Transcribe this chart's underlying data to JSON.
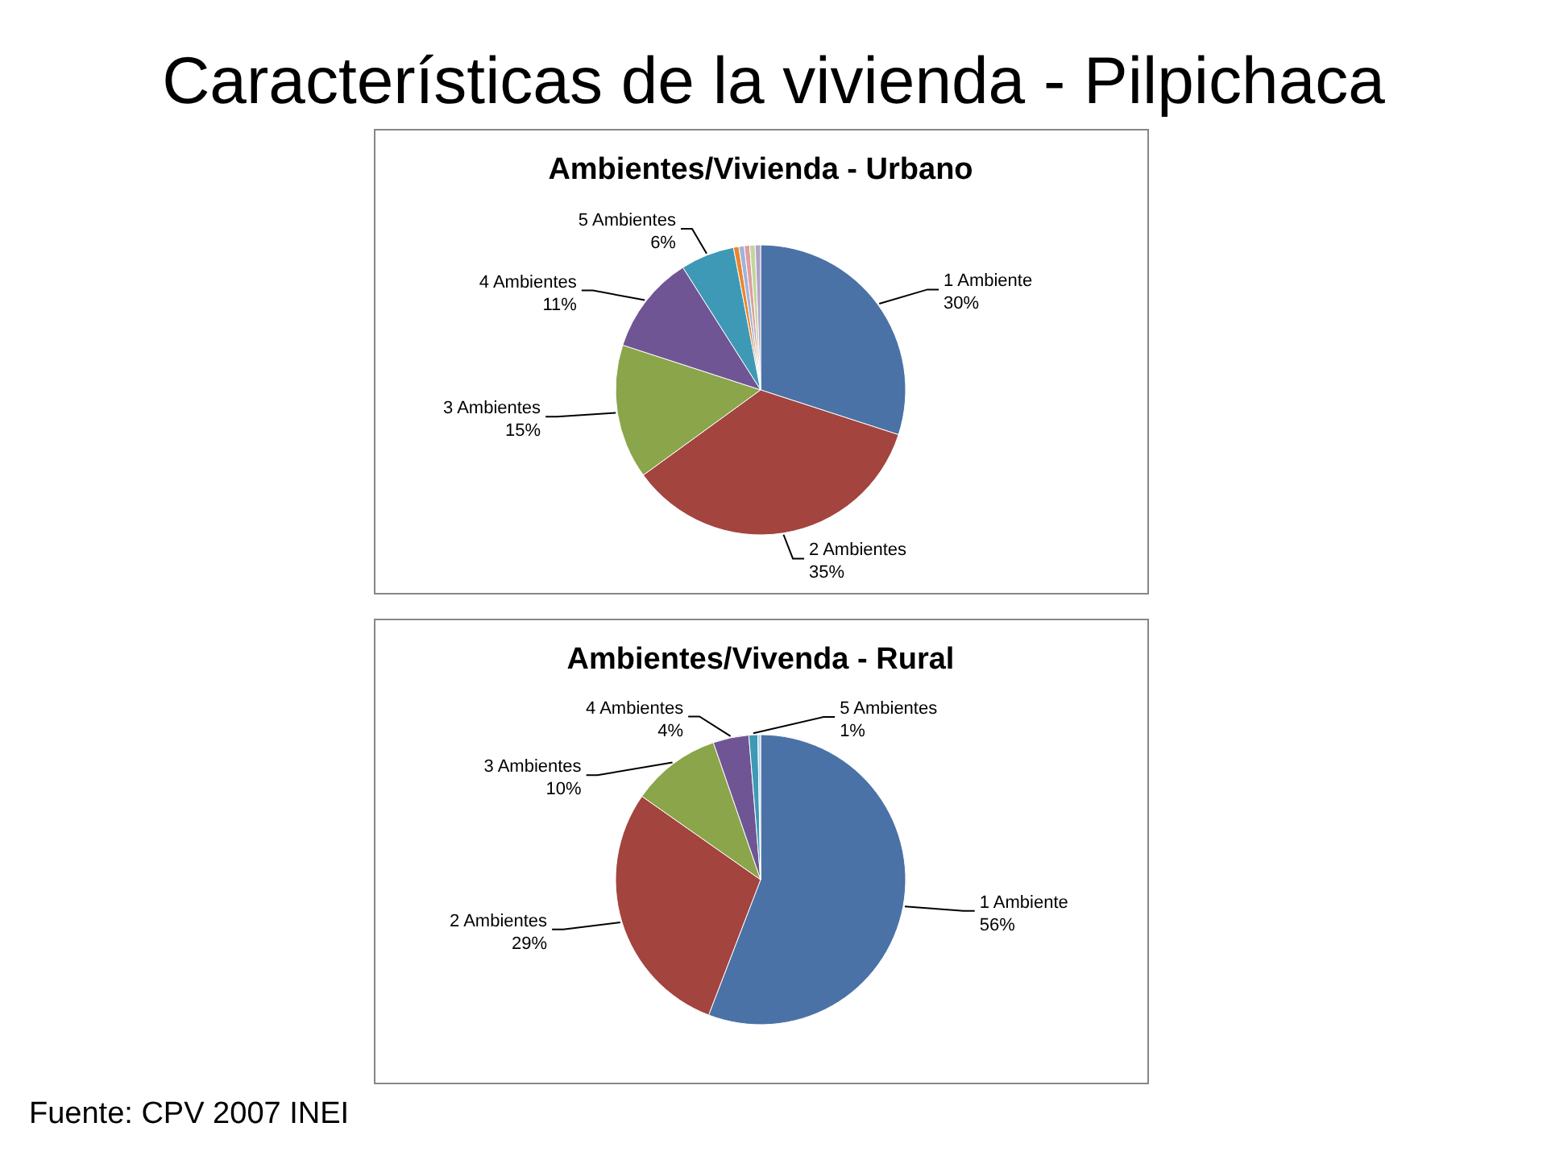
{
  "chart_data": [
    {
      "type": "other",
      "title": "Características de la vivienda - Pilpichaca",
      "annotations": [
        "Fuente: CPV 2007 INEI"
      ]
    },
    {
      "type": "pie",
      "title": "Ambientes/Vivienda - Urbano",
      "categories": [
        "1 Ambiente",
        "2 Ambientes",
        "3 Ambientes",
        "4 Ambientes",
        "5 Ambientes",
        null,
        null,
        null,
        null,
        null
      ],
      "values": [
        30,
        35,
        15,
        11,
        6,
        0.6,
        0.6,
        0.6,
        0.6,
        0.6
      ],
      "value_labels": [
        "30%",
        "35%",
        "15%",
        "11%",
        "6%",
        null,
        null,
        null,
        null,
        null
      ],
      "colors": [
        "#4a72a6",
        "#a3443f",
        "#8aa54a",
        "#705595",
        "#3d99b5",
        "#e9862d",
        "#9fb4dc",
        "#dc9f9c",
        "#c3d59e",
        "#b0a2c8"
      ]
    },
    {
      "type": "pie",
      "title": "Ambientes/Vivenda - Rural",
      "categories": [
        "1 Ambiente",
        "2 Ambientes",
        "3 Ambientes",
        "4 Ambientes",
        "5 Ambientes",
        null
      ],
      "values": [
        56,
        29,
        10,
        4,
        1,
        0.3
      ],
      "value_labels": [
        "56%",
        "29%",
        "10%",
        "4%",
        "1%",
        null
      ],
      "colors": [
        "#4a72a6",
        "#a3443f",
        "#8aa54a",
        "#705595",
        "#3d99b5",
        "#b9cbe4"
      ]
    }
  ]
}
